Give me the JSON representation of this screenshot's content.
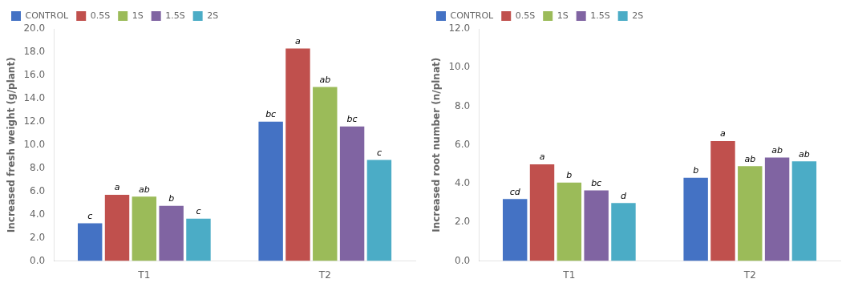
{
  "chart_data": [
    {
      "type": "bar",
      "categories": [
        "T1",
        "T2"
      ],
      "series": [
        {
          "name": "CONTROL",
          "color": "#4472c4",
          "values": [
            3.25,
            12.0
          ],
          "annotations": [
            "c",
            "bc"
          ]
        },
        {
          "name": "0.5S",
          "color": "#c0504d",
          "values": [
            5.7,
            18.3
          ],
          "annotations": [
            "a",
            "a"
          ]
        },
        {
          "name": "1S",
          "color": "#9bbb59",
          "values": [
            5.55,
            15.0
          ],
          "annotations": [
            "ab",
            "ab"
          ]
        },
        {
          "name": "1.5S",
          "color": "#8064a2",
          "values": [
            4.75,
            11.6
          ],
          "annotations": [
            "b",
            "bc"
          ]
        },
        {
          "name": "2S",
          "color": "#4bacc6",
          "values": [
            3.65,
            8.7
          ],
          "annotations": [
            "c",
            "c"
          ]
        }
      ],
      "ylabel": "Increased fresh weight (g/plant)",
      "ylim": [
        0,
        20.0
      ],
      "yticks": [
        {
          "value": 0,
          "label": "0.0"
        },
        {
          "value": 2,
          "label": "2.0"
        },
        {
          "value": 4,
          "label": "4.0"
        },
        {
          "value": 6,
          "label": "6.0"
        },
        {
          "value": 8,
          "label": "8.0"
        },
        {
          "value": 10,
          "label": "10.0"
        },
        {
          "value": 12,
          "label": "12.0"
        },
        {
          "value": 14,
          "label": "14.0"
        },
        {
          "value": 16,
          "label": "16.0"
        },
        {
          "value": 18,
          "label": "18.0"
        },
        {
          "value": 20,
          "label": "20.0"
        }
      ],
      "grid": false,
      "legend": "upper left"
    },
    {
      "type": "bar",
      "categories": [
        "T1",
        "T2"
      ],
      "series": [
        {
          "name": "CONTROL",
          "color": "#4472c4",
          "values": [
            3.2,
            4.3
          ],
          "annotations": [
            "cd",
            "b"
          ]
        },
        {
          "name": "0.5S",
          "color": "#c0504d",
          "values": [
            5.0,
            6.2
          ],
          "annotations": [
            "a",
            "a"
          ]
        },
        {
          "name": "1S",
          "color": "#9bbb59",
          "values": [
            4.05,
            4.9
          ],
          "annotations": [
            "b",
            "ab"
          ]
        },
        {
          "name": "1.5S",
          "color": "#8064a2",
          "values": [
            3.65,
            5.35
          ],
          "annotations": [
            "bc",
            "ab"
          ]
        },
        {
          "name": "2S",
          "color": "#4bacc6",
          "values": [
            3.0,
            5.15
          ],
          "annotations": [
            "d",
            "ab"
          ]
        }
      ],
      "ylabel": "Increased root number (n/plnat)",
      "ylim": [
        0,
        12.0
      ],
      "yticks": [
        {
          "value": 0,
          "label": "0.0"
        },
        {
          "value": 2,
          "label": "2.0"
        },
        {
          "value": 4,
          "label": "4.0"
        },
        {
          "value": 6,
          "label": "6.0"
        },
        {
          "value": 8,
          "label": "8.0"
        },
        {
          "value": 10,
          "label": "10.0"
        },
        {
          "value": 12,
          "label": "12.0"
        }
      ],
      "grid": false,
      "legend": "upper left"
    }
  ]
}
